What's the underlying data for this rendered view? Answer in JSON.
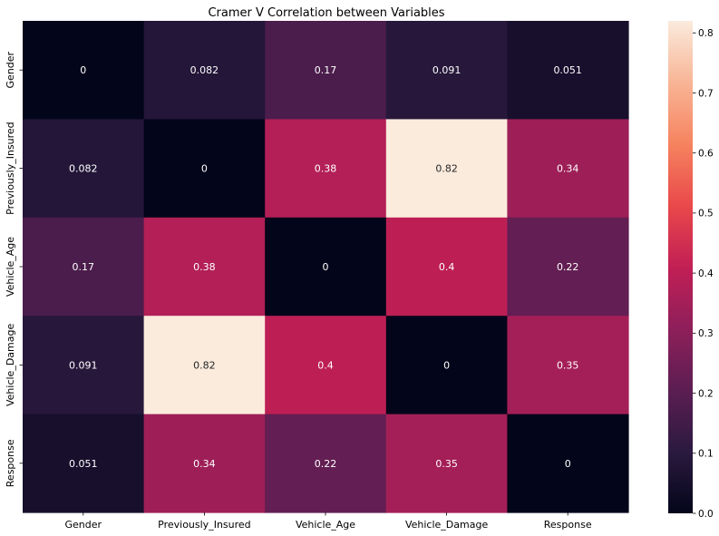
{
  "chart_data": {
    "type": "heatmap",
    "title": "Cramer V Correlation between Variables",
    "xlabel": "",
    "ylabel": "",
    "x_categories": [
      "Gender",
      "Previously_Insured",
      "Vehicle_Age",
      "Vehicle_Damage",
      "Response"
    ],
    "y_categories": [
      "Gender",
      "Previously_Insured",
      "Vehicle_Age",
      "Vehicle_Damage",
      "Response"
    ],
    "matrix": [
      [
        0,
        0.082,
        0.17,
        0.091,
        0.051
      ],
      [
        0.082,
        0,
        0.38,
        0.82,
        0.34
      ],
      [
        0.17,
        0.38,
        0,
        0.4,
        0.22
      ],
      [
        0.091,
        0.82,
        0.4,
        0,
        0.35
      ],
      [
        0.051,
        0.34,
        0.22,
        0.35,
        0
      ]
    ],
    "cell_labels": [
      [
        "0",
        "0.082",
        "0.17",
        "0.091",
        "0.051"
      ],
      [
        "0.082",
        "0",
        "0.38",
        "0.82",
        "0.34"
      ],
      [
        "0.17",
        "0.38",
        "0",
        "0.4",
        "0.22"
      ],
      [
        "0.091",
        "0.82",
        "0.4",
        "0",
        "0.35"
      ],
      [
        "0.051",
        "0.34",
        "0.22",
        "0.35",
        "0"
      ]
    ],
    "colorbar": {
      "range": [
        0,
        0.82
      ],
      "ticks": [
        0.0,
        0.1,
        0.2,
        0.3,
        0.4,
        0.5,
        0.6,
        0.7,
        0.8
      ],
      "tick_labels": [
        "0.0",
        "0.1",
        "0.2",
        "0.3",
        "0.4",
        "0.5",
        "0.6",
        "0.7",
        "0.8"
      ],
      "colormap": "rocket",
      "colormap_stops": [
        "#03051a",
        "#2b1a3f",
        "#5c1e52",
        "#8e1f5a",
        "#c21f55",
        "#e9494a",
        "#f6835f",
        "#f8b596",
        "#faebdd"
      ]
    },
    "grid": false
  }
}
